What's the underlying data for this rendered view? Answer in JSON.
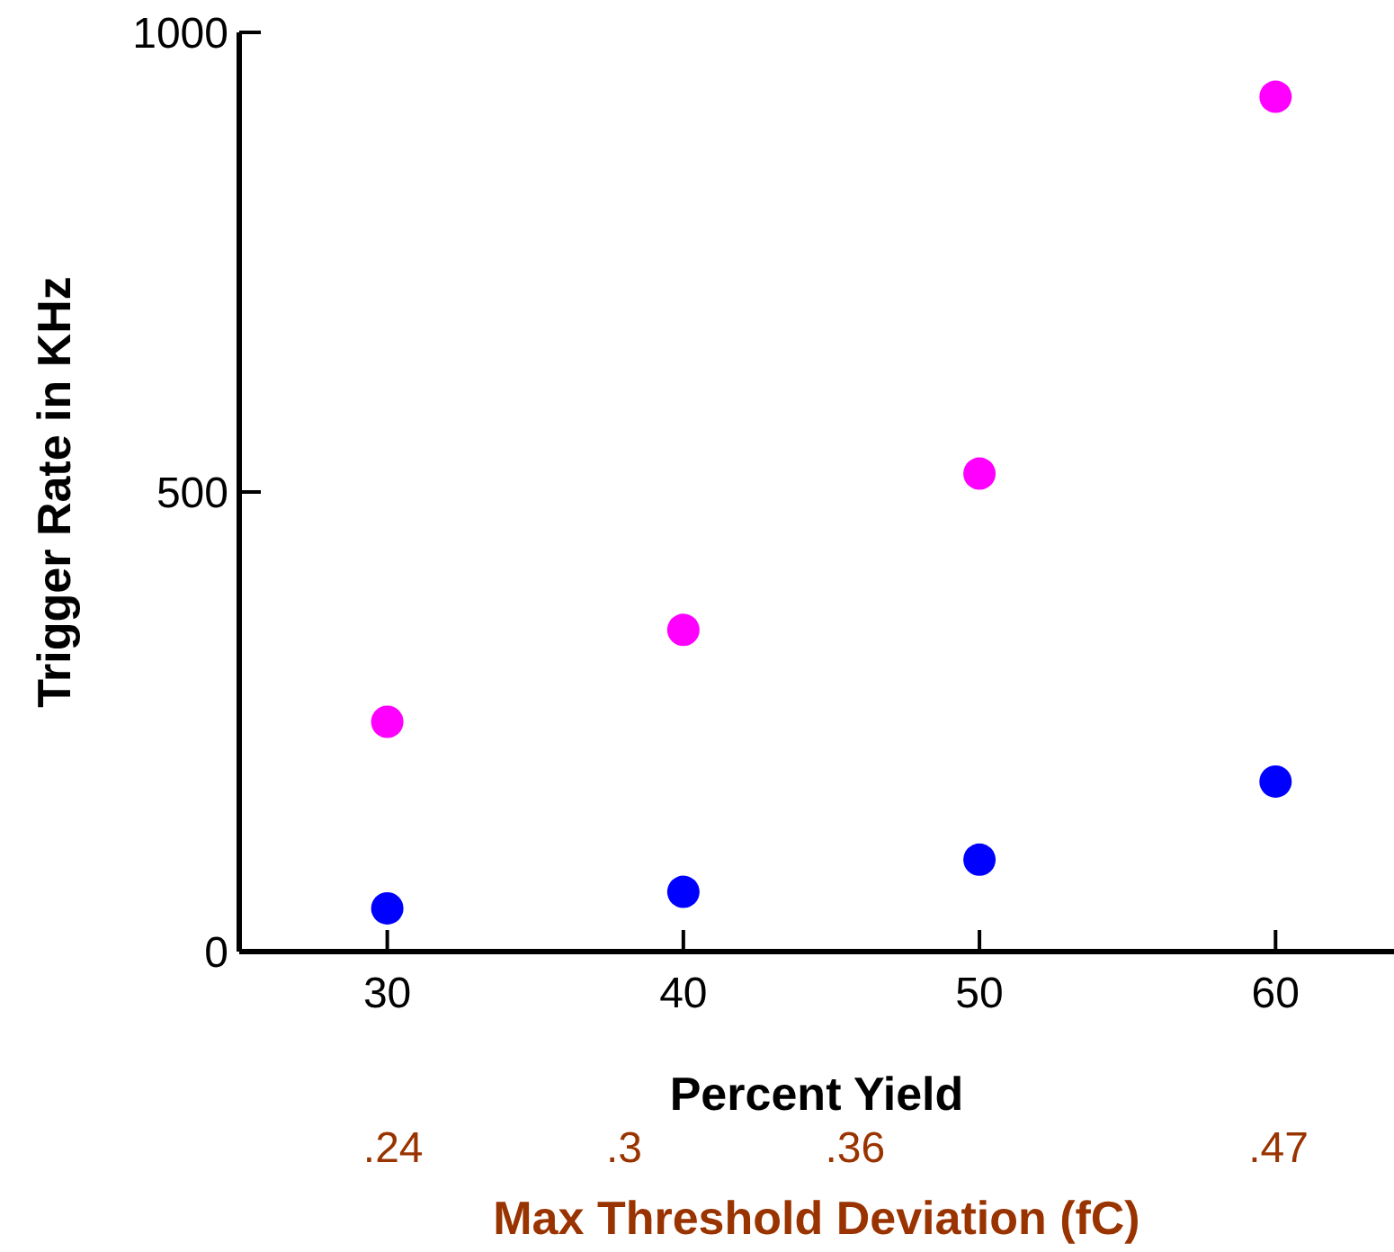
{
  "chart_data": {
    "type": "scatter",
    "xlabel": "Percent Yield",
    "ylabel": "Trigger Rate in KHz",
    "x2label": "Max Threshold Deviation (fC)",
    "xlim": [
      25,
      64
    ],
    "xticks": [
      30,
      40,
      50,
      60
    ],
    "x2lim": [
      0.2,
      0.5
    ],
    "x2ticks": [
      {
        "value": 0.24,
        "label": ".24"
      },
      {
        "value": 0.3,
        "label": ".3"
      },
      {
        "value": 0.36,
        "label": ".36"
      },
      {
        "value": 0.47,
        "label": ".47"
      }
    ],
    "ylim": [
      0,
      1000
    ],
    "yticks": [
      0,
      500,
      1000
    ],
    "x": [
      30,
      40,
      50,
      60
    ],
    "series": [
      {
        "color": "#ff00ff",
        "values": [
          250,
          350,
          520,
          930
        ]
      },
      {
        "color": "#0000ff",
        "values": [
          47,
          65,
          100,
          185
        ]
      }
    ],
    "marker": "circle",
    "grid": false,
    "legend": false
  }
}
